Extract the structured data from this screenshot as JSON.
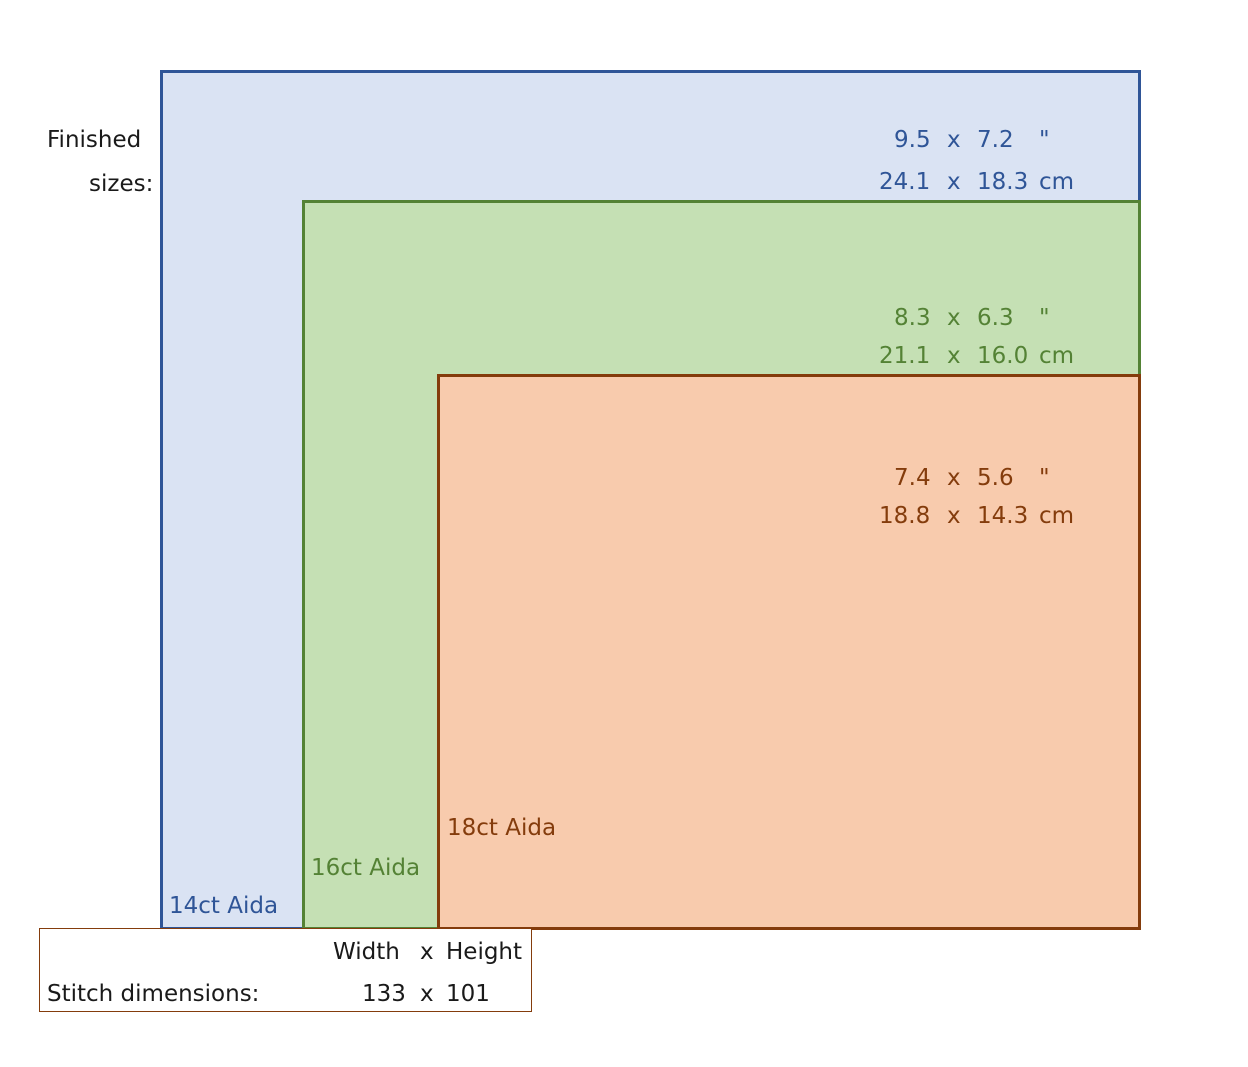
{
  "finished_sizes_label": [
    "Finished",
    "sizes:"
  ],
  "fabrics": [
    {
      "name": "14ct Aida",
      "color": "#2f5597",
      "fill": "#dae3f3",
      "inches": {
        "width": "9.5",
        "x": "x",
        "height": "7.2",
        "unit": "\""
      },
      "cm": {
        "width": "24.1",
        "x": "x",
        "height": "18.3",
        "unit": "cm"
      }
    },
    {
      "name": "16ct Aida",
      "color": "#548235",
      "fill": "#c5e0b4",
      "inches": {
        "width": "8.3",
        "x": "x",
        "height": "6.3",
        "unit": "\""
      },
      "cm": {
        "width": "21.1",
        "x": "x",
        "height": "16.0",
        "unit": "cm"
      }
    },
    {
      "name": "18ct Aida",
      "color": "#843c0c",
      "fill": "#f8cbad",
      "inches": {
        "width": "7.4",
        "x": "x",
        "height": "5.6",
        "unit": "\""
      },
      "cm": {
        "width": "18.8",
        "x": "x",
        "height": "14.3",
        "unit": "cm"
      }
    }
  ],
  "stitch": {
    "header_width": "Width",
    "header_x": "x",
    "header_height": "Height",
    "label": "Stitch dimensions:",
    "width": "133",
    "x": "x",
    "height": "101"
  }
}
